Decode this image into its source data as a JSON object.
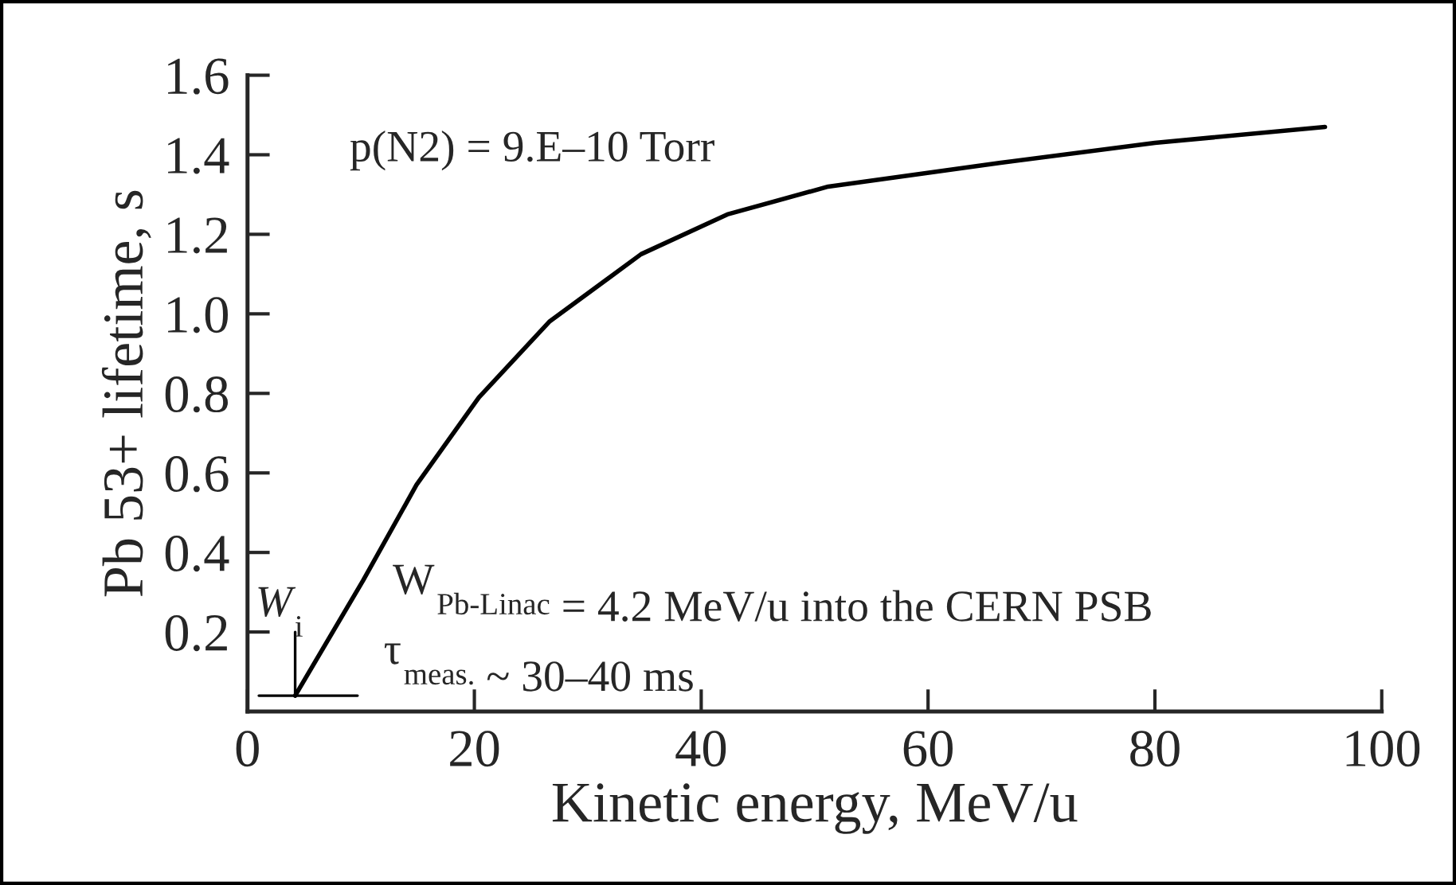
{
  "chart_data": {
    "type": "line",
    "xlabel": "Kinetic energy, MeV/u",
    "ylabel": "Pb 53+ lifetime, s",
    "x": [
      4.2,
      10.2,
      14.9,
      20.4,
      26.6,
      34.7,
      42.3,
      51.2,
      66.4,
      80,
      95
    ],
    "series": [
      {
        "color": "#000000",
        "values": [
          0.04,
          0.33,
          0.57,
          0.79,
          0.98,
          1.15,
          1.25,
          1.32,
          1.38,
          1.43,
          1.47
        ]
      }
    ],
    "xlim": [
      0,
      100
    ],
    "xticks": [
      0,
      20,
      40,
      60,
      80,
      100
    ],
    "ylim": [
      0,
      1.6
    ],
    "yticks": [
      0.2,
      0.4,
      0.6,
      0.8,
      {
        "value": 1,
        "label": "1.0"
      },
      1.2,
      1.4,
      1.6
    ],
    "annotations": [
      "p(N2) = 9.E–10 Torr",
      {
        "text": "W$_{i}$",
        "x": 4.2,
        "y": 0.04
      },
      "W$_{Pb-Linac}$ = 4.2 MeV/u into the CERN PSB",
      "τ$_{meas.}$ ~ 30–40 ms"
    ],
    "grid": false,
    "legend": false,
    "marker": "none",
    "line_style": "solid"
  }
}
